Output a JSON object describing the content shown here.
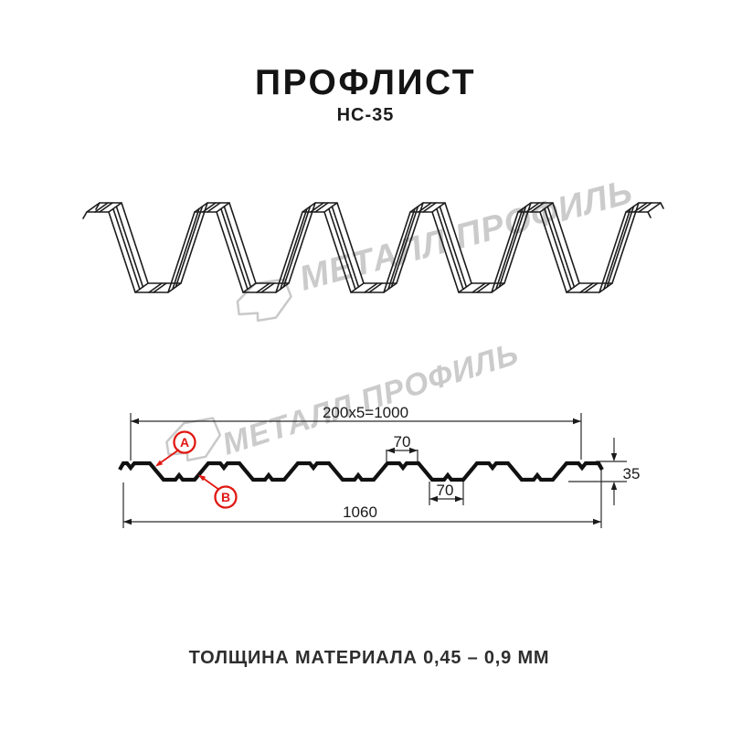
{
  "header": {
    "title": "ПРОФЛИСТ",
    "subtitle": "НС-35"
  },
  "watermark": {
    "brand_text": "МЕТАЛЛ ПРОФИЛЬ",
    "color": "#cbcbcb"
  },
  "section_diagram": {
    "dim_top_width": "200x5=1000",
    "dim_total_width": "1060",
    "dim_crest_width": "70",
    "dim_valley_width": "70",
    "dim_height": "35",
    "label_a": "A",
    "label_b": "B",
    "accent_red": "#e01812",
    "line_color": "#111111"
  },
  "footer": {
    "thickness_note": "ТОЛЩИНА МАТЕРИАЛА 0,45 – 0,9 ММ"
  }
}
